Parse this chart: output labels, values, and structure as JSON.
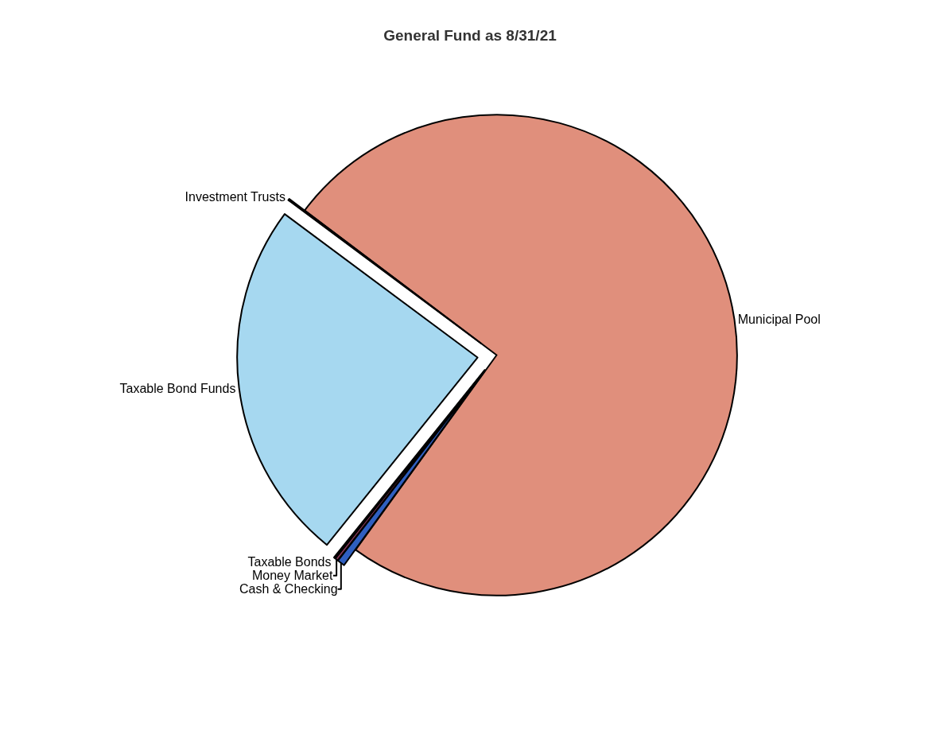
{
  "chart_data": {
    "type": "pie",
    "title": "General Fund as 8/31/21",
    "categories": [
      "Municipal Pool",
      "Cash & Checking",
      "Money Market",
      "Taxable Bonds",
      "Taxable Bond Funds",
      "Investment Trusts"
    ],
    "values": [
      74.7,
      0.5,
      0.2,
      0.1,
      24.4,
      0.1
    ],
    "colors": [
      "#e08f7c",
      "#2f5fc0",
      "#8b3a5a",
      "#5a6a6a",
      "#a6d8f0",
      "#ffffff"
    ],
    "legend": false
  }
}
